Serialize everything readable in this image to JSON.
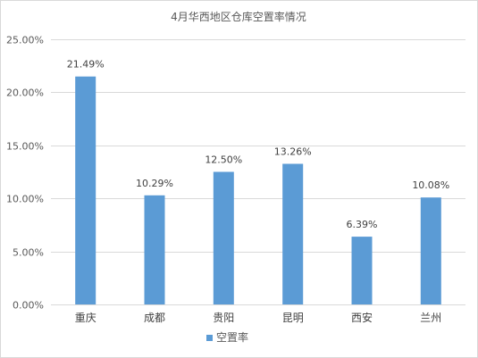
{
  "chart_data": {
    "type": "bar",
    "title": "4月华西地区仓库空置率情况",
    "categories": [
      "重庆",
      "成都",
      "贵阳",
      "昆明",
      "西安",
      "兰州"
    ],
    "series": [
      {
        "name": "空置率",
        "values": [
          21.49,
          10.29,
          12.5,
          13.26,
          6.39,
          10.08
        ],
        "data_labels": [
          "21.49%",
          "10.29%",
          "12.50%",
          "13.26%",
          "6.39%",
          "10.08%"
        ],
        "color": "#5b9bd5"
      }
    ],
    "ylim": [
      0,
      25
    ],
    "yticks": [
      0,
      5,
      10,
      15,
      20,
      25
    ],
    "ytick_labels": [
      "0.00%",
      "5.00%",
      "10.00%",
      "15.00%",
      "20.00%",
      "25.00%"
    ],
    "xlabel": "",
    "ylabel": "",
    "grid": true,
    "legend": "bottom",
    "colors": {
      "grid": "#d9d9d9",
      "text": "#595959",
      "bar": "#5b9bd5"
    }
  }
}
